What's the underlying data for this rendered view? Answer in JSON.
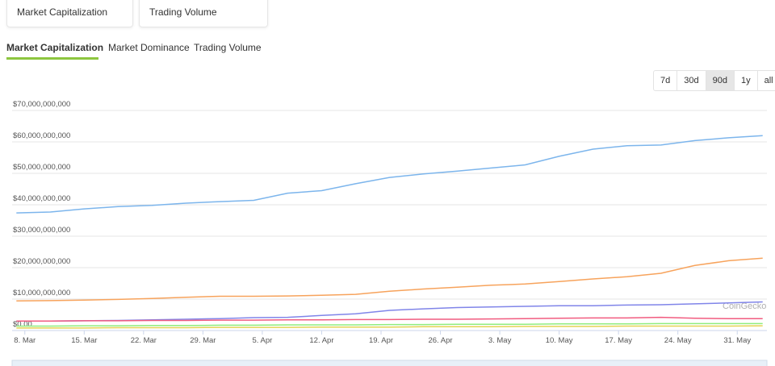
{
  "cards": [
    {
      "label": "Market Capitalization"
    },
    {
      "label": "Trading Volume"
    }
  ],
  "tabs": [
    "Market Capitalization",
    "Market Dominance",
    "Trading Volume"
  ],
  "range_buttons": [
    "7d",
    "30d",
    "90d",
    "1y",
    "all"
  ],
  "active_range": 2,
  "chart_data": {
    "type": "line",
    "watermark": "CoinGecko",
    "x": [
      -1,
      3,
      7,
      11,
      15,
      19,
      23,
      27,
      31,
      35,
      39,
      43,
      47,
      51,
      55,
      59,
      63,
      67,
      71,
      75,
      79,
      83,
      87
    ],
    "xlim": [
      -1.5,
      87.5
    ],
    "xticks": [
      {
        "value": 0,
        "label": "8. Mar"
      },
      {
        "value": 7,
        "label": "15. Mar"
      },
      {
        "value": 14,
        "label": "22. Mar"
      },
      {
        "value": 21,
        "label": "29. Mar"
      },
      {
        "value": 28,
        "label": "5. Apr"
      },
      {
        "value": 35,
        "label": "12. Apr"
      },
      {
        "value": 42,
        "label": "19. Apr"
      },
      {
        "value": 49,
        "label": "26. Apr"
      },
      {
        "value": 56,
        "label": "3. May"
      },
      {
        "value": 63,
        "label": "10. May"
      },
      {
        "value": 70,
        "label": "17. May"
      },
      {
        "value": 77,
        "label": "24. May"
      },
      {
        "value": 84,
        "label": "31. May"
      }
    ],
    "ylim": [
      0,
      70000000000
    ],
    "yticks": [
      {
        "value": 0,
        "label": "$0.00"
      },
      {
        "value": 10000000000,
        "label": "$10,000,000,000"
      },
      {
        "value": 20000000000,
        "label": "$20,000,000,000"
      },
      {
        "value": 30000000000,
        "label": "$30,000,000,000"
      },
      {
        "value": 40000000000,
        "label": "$40,000,000,000"
      },
      {
        "value": 50000000000,
        "label": "$50,000,000,000"
      },
      {
        "value": 60000000000,
        "label": "$60,000,000,000"
      },
      {
        "value": 70000000000,
        "label": "$70,000,000,000"
      }
    ],
    "grid": true,
    "series": [
      {
        "color": "#7cb5ec",
        "values": [
          37400000000.0,
          37700000000.0,
          38700000000.0,
          39400000000.0,
          39800000000.0,
          40500000000.0,
          41000000000.0,
          41400000000.0,
          43700000000.0,
          44500000000.0,
          46700000000.0,
          48700000000.0,
          49800000000.0,
          50700000000.0,
          51700000000.0,
          52700000000.0,
          55400000000.0,
          57700000000.0,
          58800000000.0,
          59000000000.0,
          60400000000.0,
          61300000000.0,
          62000000000.0
        ]
      },
      {
        "color": "#f7a35c",
        "values": [
          9400000000.0,
          9500000000.0,
          9700000000.0,
          9900000000.0,
          10200000000.0,
          10600000000.0,
          10900000000.0,
          10900000000.0,
          11000000000.0,
          11200000000.0,
          11500000000.0,
          12500000000.0,
          13200000000.0,
          13800000000.0,
          14400000000.0,
          14800000000.0,
          15600000000.0,
          16400000000.0,
          17100000000.0,
          18200000000.0,
          20700000000.0,
          22200000000.0,
          23000000000.0
        ]
      },
      {
        "color": "#8085e9",
        "values": [
          3000000000.0,
          3000000000.0,
          3100000000.0,
          3200000000.0,
          3400000000.0,
          3600000000.0,
          3800000000.0,
          4100000000.0,
          4200000000.0,
          4800000000.0,
          5300000000.0,
          6400000000.0,
          6900000000.0,
          7300000000.0,
          7500000000.0,
          7700000000.0,
          7900000000.0,
          7900000000.0,
          8100000000.0,
          8200000000.0,
          8500000000.0,
          8800000000.0,
          9100000000.0
        ]
      },
      {
        "color": "#f15c80",
        "values": [
          3000000000.0,
          3000000000.0,
          3100000000.0,
          3100000000.0,
          3200000000.0,
          3200000000.0,
          3300000000.0,
          3300000000.0,
          3400000000.0,
          3400000000.0,
          3500000000.0,
          3500000000.0,
          3600000000.0,
          3600000000.0,
          3700000000.0,
          3800000000.0,
          3900000000.0,
          4000000000.0,
          4000000000.0,
          4200000000.0,
          3900000000.0,
          3800000000.0,
          3800000000.0
        ]
      },
      {
        "color": "#90ed7d",
        "values": [
          1400000000.0,
          1400000000.0,
          1500000000.0,
          1500000000.0,
          1600000000.0,
          1600000000.0,
          1700000000.0,
          1700000000.0,
          1800000000.0,
          1800000000.0,
          1800000000.0,
          1900000000.0,
          1900000000.0,
          2000000000.0,
          2000000000.0,
          2000000000.0,
          2100000000.0,
          2100000000.0,
          2100000000.0,
          2200000000.0,
          2200000000.0,
          2200000000.0,
          2200000000.0
        ]
      },
      {
        "color": "#e4d354",
        "values": [
          800000000.0,
          800000000.0,
          800000000.0,
          900000000.0,
          900000000.0,
          900000000.0,
          1000000000.0,
          1000000000.0,
          1000000000.0,
          1100000000.0,
          1100000000.0,
          1100000000.0,
          1200000000.0,
          1200000000.0,
          1200000000.0,
          1300000000.0,
          1300000000.0,
          1300000000.0,
          1400000000.0,
          1400000000.0,
          1400000000.0,
          1400000000.0,
          1500000000.0
        ]
      }
    ]
  }
}
